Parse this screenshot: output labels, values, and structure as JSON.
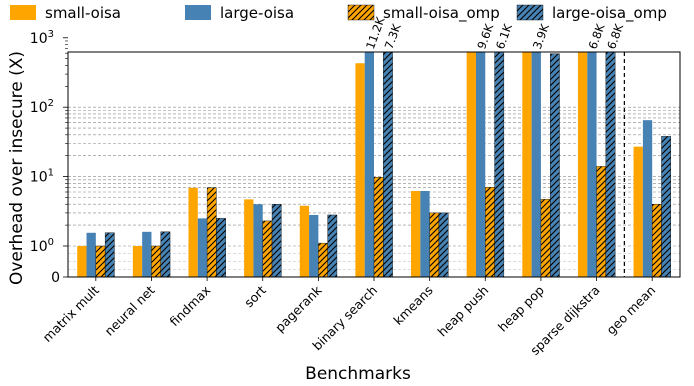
{
  "chart_data": {
    "type": "bar",
    "xlabel": "Benchmarks",
    "ylabel": "Overhead over insecure (X)",
    "yscale": "symlog",
    "ylim": [
      0,
      2000
    ],
    "grid": "horizontal dashed",
    "legend_position": "top",
    "categories": [
      "matrix mult",
      "neural net",
      "findmax",
      "sort",
      "pagerank",
      "binary search",
      "kmeans",
      "heap push",
      "heap pop",
      "sparse dijkstra",
      "geo mean"
    ],
    "series": [
      {
        "name": "small-oisa",
        "color": "#FFA500",
        "hatch": false,
        "values": [
          1.0,
          1.0,
          6.9,
          4.7,
          3.8,
          430,
          6.2,
          1650,
          1050,
          760,
          27
        ]
      },
      {
        "name": "large-oisa",
        "color": "#4682B4",
        "hatch": false,
        "values": [
          1.55,
          1.6,
          2.5,
          4.0,
          2.8,
          2000,
          6.2,
          2000,
          2000,
          2000,
          65
        ]
      },
      {
        "name": "small-oisa_omp",
        "color": "#FFA500",
        "hatch": true,
        "values": [
          1.0,
          1.0,
          6.9,
          2.3,
          1.1,
          9.8,
          3.0,
          7.0,
          4.7,
          14,
          4.0
        ]
      },
      {
        "name": "large-oisa_omp",
        "color": "#4682B4",
        "hatch": true,
        "values": [
          1.55,
          1.6,
          2.5,
          4.0,
          2.8,
          2000,
          3.0,
          2000,
          590,
          2000,
          38
        ]
      }
    ],
    "bar_annotations": [
      {
        "category": 5,
        "series": 1,
        "text": "11.2K"
      },
      {
        "category": 5,
        "series": 3,
        "text": "7.3K"
      },
      {
        "category": 7,
        "series": 1,
        "text": "9.6K"
      },
      {
        "category": 7,
        "series": 3,
        "text": "6.1K"
      },
      {
        "category": 8,
        "series": 1,
        "text": "3.9K"
      },
      {
        "category": 9,
        "series": 1,
        "text": "6.8K"
      },
      {
        "category": 9,
        "series": 3,
        "text": "6.8K"
      }
    ],
    "separator_after_category": 9
  }
}
